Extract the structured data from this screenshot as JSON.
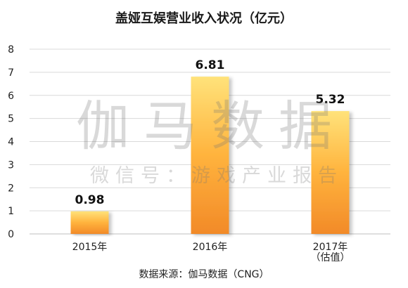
{
  "chart_data": {
    "type": "bar",
    "title": "盖娅互娱营业收入状况（亿元）",
    "categories": [
      [
        "2015年"
      ],
      [
        "2016年"
      ],
      [
        "2017年",
        "（估值）"
      ]
    ],
    "values": [
      0.98,
      6.81,
      5.32
    ],
    "data_labels": [
      "0.98",
      "6.81",
      "5.32"
    ],
    "ylim": [
      0,
      8
    ],
    "yticks": [
      "0",
      "1",
      "2",
      "3",
      "4",
      "5",
      "6",
      "7",
      "8"
    ],
    "xlabel": "",
    "ylabel": "",
    "grid": true,
    "legend": "none"
  },
  "source": "数据来源：伽马数据（CNG）",
  "watermark": {
    "main": "伽马数据",
    "sub": "微信号：游戏产业报告"
  },
  "colors": {
    "bar_top": "#ffe27a",
    "bar_mid": "#ffb33d",
    "bar_bottom": "#f28a28",
    "grid": "#d9d9d9",
    "axis": "#bfbfbf",
    "text": "#222222"
  }
}
